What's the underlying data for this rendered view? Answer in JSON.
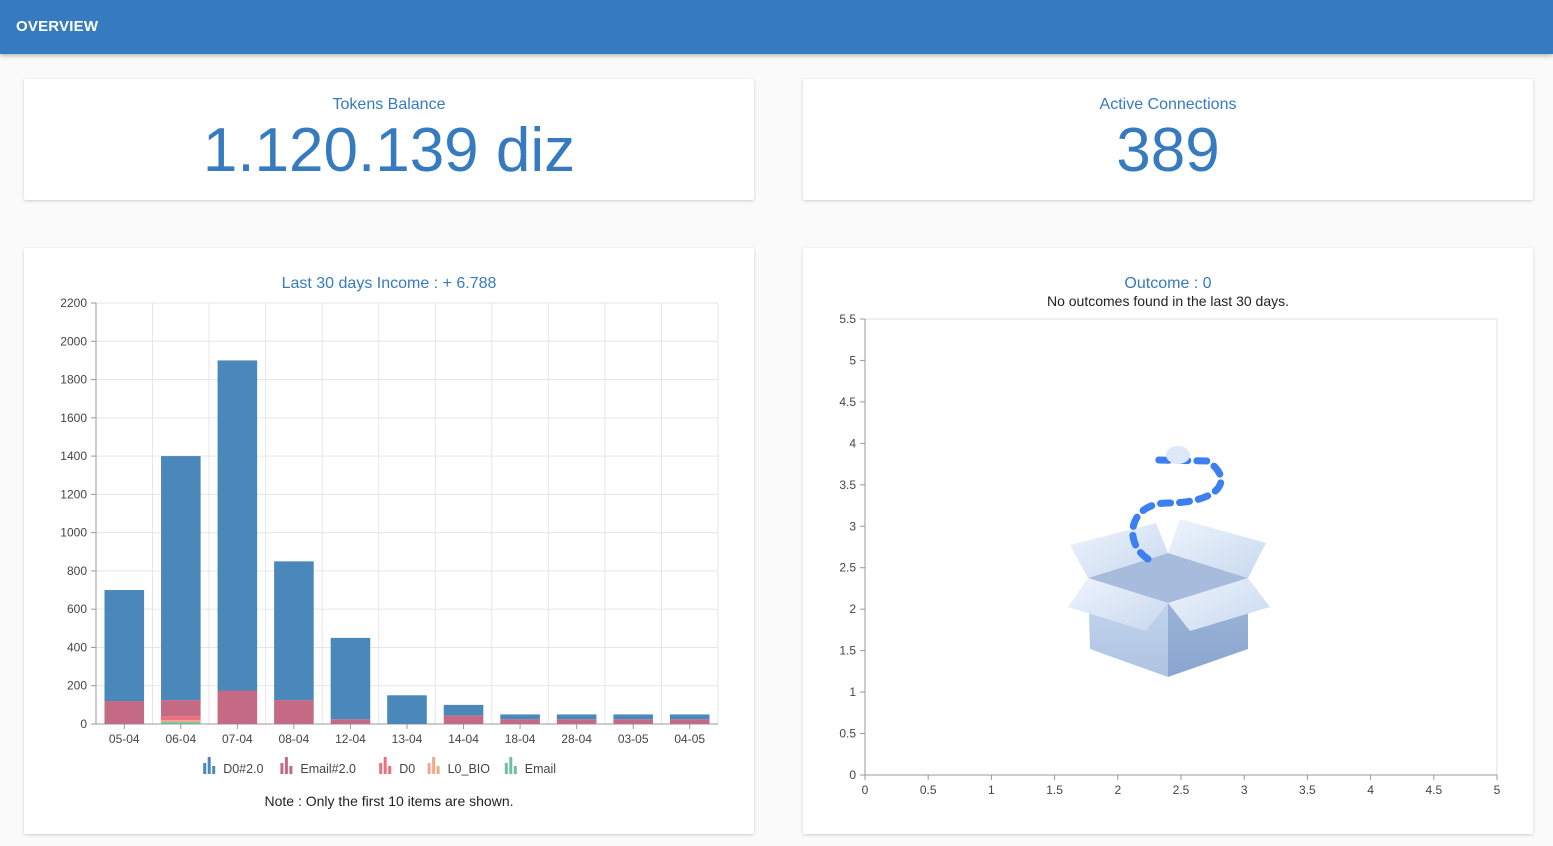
{
  "header": {
    "title": "OVERVIEW"
  },
  "tokens": {
    "label": "Tokens Balance",
    "value": "1.120.139 diz"
  },
  "connections": {
    "label": "Active Connections",
    "value": "389"
  },
  "income": {
    "title": "Last 30 days Income : + 6.788",
    "note": "Note : Only the first 10 items are shown."
  },
  "outcome": {
    "title": "Outcome : 0",
    "subtitle": "No outcomes found in the last 30 days."
  },
  "colors": {
    "accent": "#367bbf",
    "D0#2.0": "#4a87bb",
    "Email#2.0": "#c46a84",
    "D0": "#ef6f7c",
    "L0_BIO": "#f2a98a",
    "Email": "#6fbf9f"
  },
  "chart_data": [
    {
      "type": "bar",
      "stacked": true,
      "title": "Last 30 days Income : + 6.788",
      "categories": [
        "05-04",
        "06-04",
        "07-04",
        "08-04",
        "12-04",
        "13-04",
        "14-04",
        "18-04",
        "28-04",
        "03-05",
        "04-05"
      ],
      "series": [
        {
          "name": "Email",
          "values": [
            0,
            10,
            0,
            0,
            0,
            0,
            0,
            0,
            0,
            0,
            0
          ]
        },
        {
          "name": "L0_BIO",
          "values": [
            0,
            10,
            0,
            0,
            0,
            0,
            0,
            0,
            0,
            0,
            0
          ]
        },
        {
          "name": "D0",
          "values": [
            0,
            20,
            0,
            0,
            0,
            0,
            0,
            0,
            0,
            0,
            0
          ]
        },
        {
          "name": "Email#2.0",
          "values": [
            120,
            85,
            175,
            125,
            25,
            0,
            45,
            25,
            25,
            25,
            25
          ]
        },
        {
          "name": "D0#2.0",
          "values": [
            580,
            1275,
            1725,
            725,
            425,
            150,
            55,
            25,
            25,
            25,
            25
          ]
        }
      ],
      "legend_order": [
        "D0#2.0",
        "Email#2.0",
        "D0",
        "L0_BIO",
        "Email"
      ],
      "yticks": [
        0,
        200,
        400,
        600,
        800,
        1000,
        1200,
        1400,
        1600,
        1800,
        2000,
        2200
      ],
      "ylim": [
        0,
        2200
      ],
      "grid": true,
      "legend": "bottom"
    },
    {
      "type": "scatter",
      "title": "Outcome : 0",
      "subtitle": "No outcomes found in the last 30 days.",
      "x": [],
      "y": [],
      "xlim": [
        0,
        5
      ],
      "ylim": [
        0,
        5.5
      ],
      "xticks": [
        "0",
        "0.5",
        "1",
        "1.5",
        "2",
        "2.5",
        "3",
        "3.5",
        "4",
        "4.5",
        "5"
      ],
      "yticks": [
        "0",
        "0.5",
        "1",
        "1.5",
        "2",
        "2.5",
        "3",
        "3.5",
        "4",
        "4.5",
        "5",
        "5.5"
      ],
      "grid": false,
      "empty_state_icon": "empty-box-icon"
    }
  ]
}
